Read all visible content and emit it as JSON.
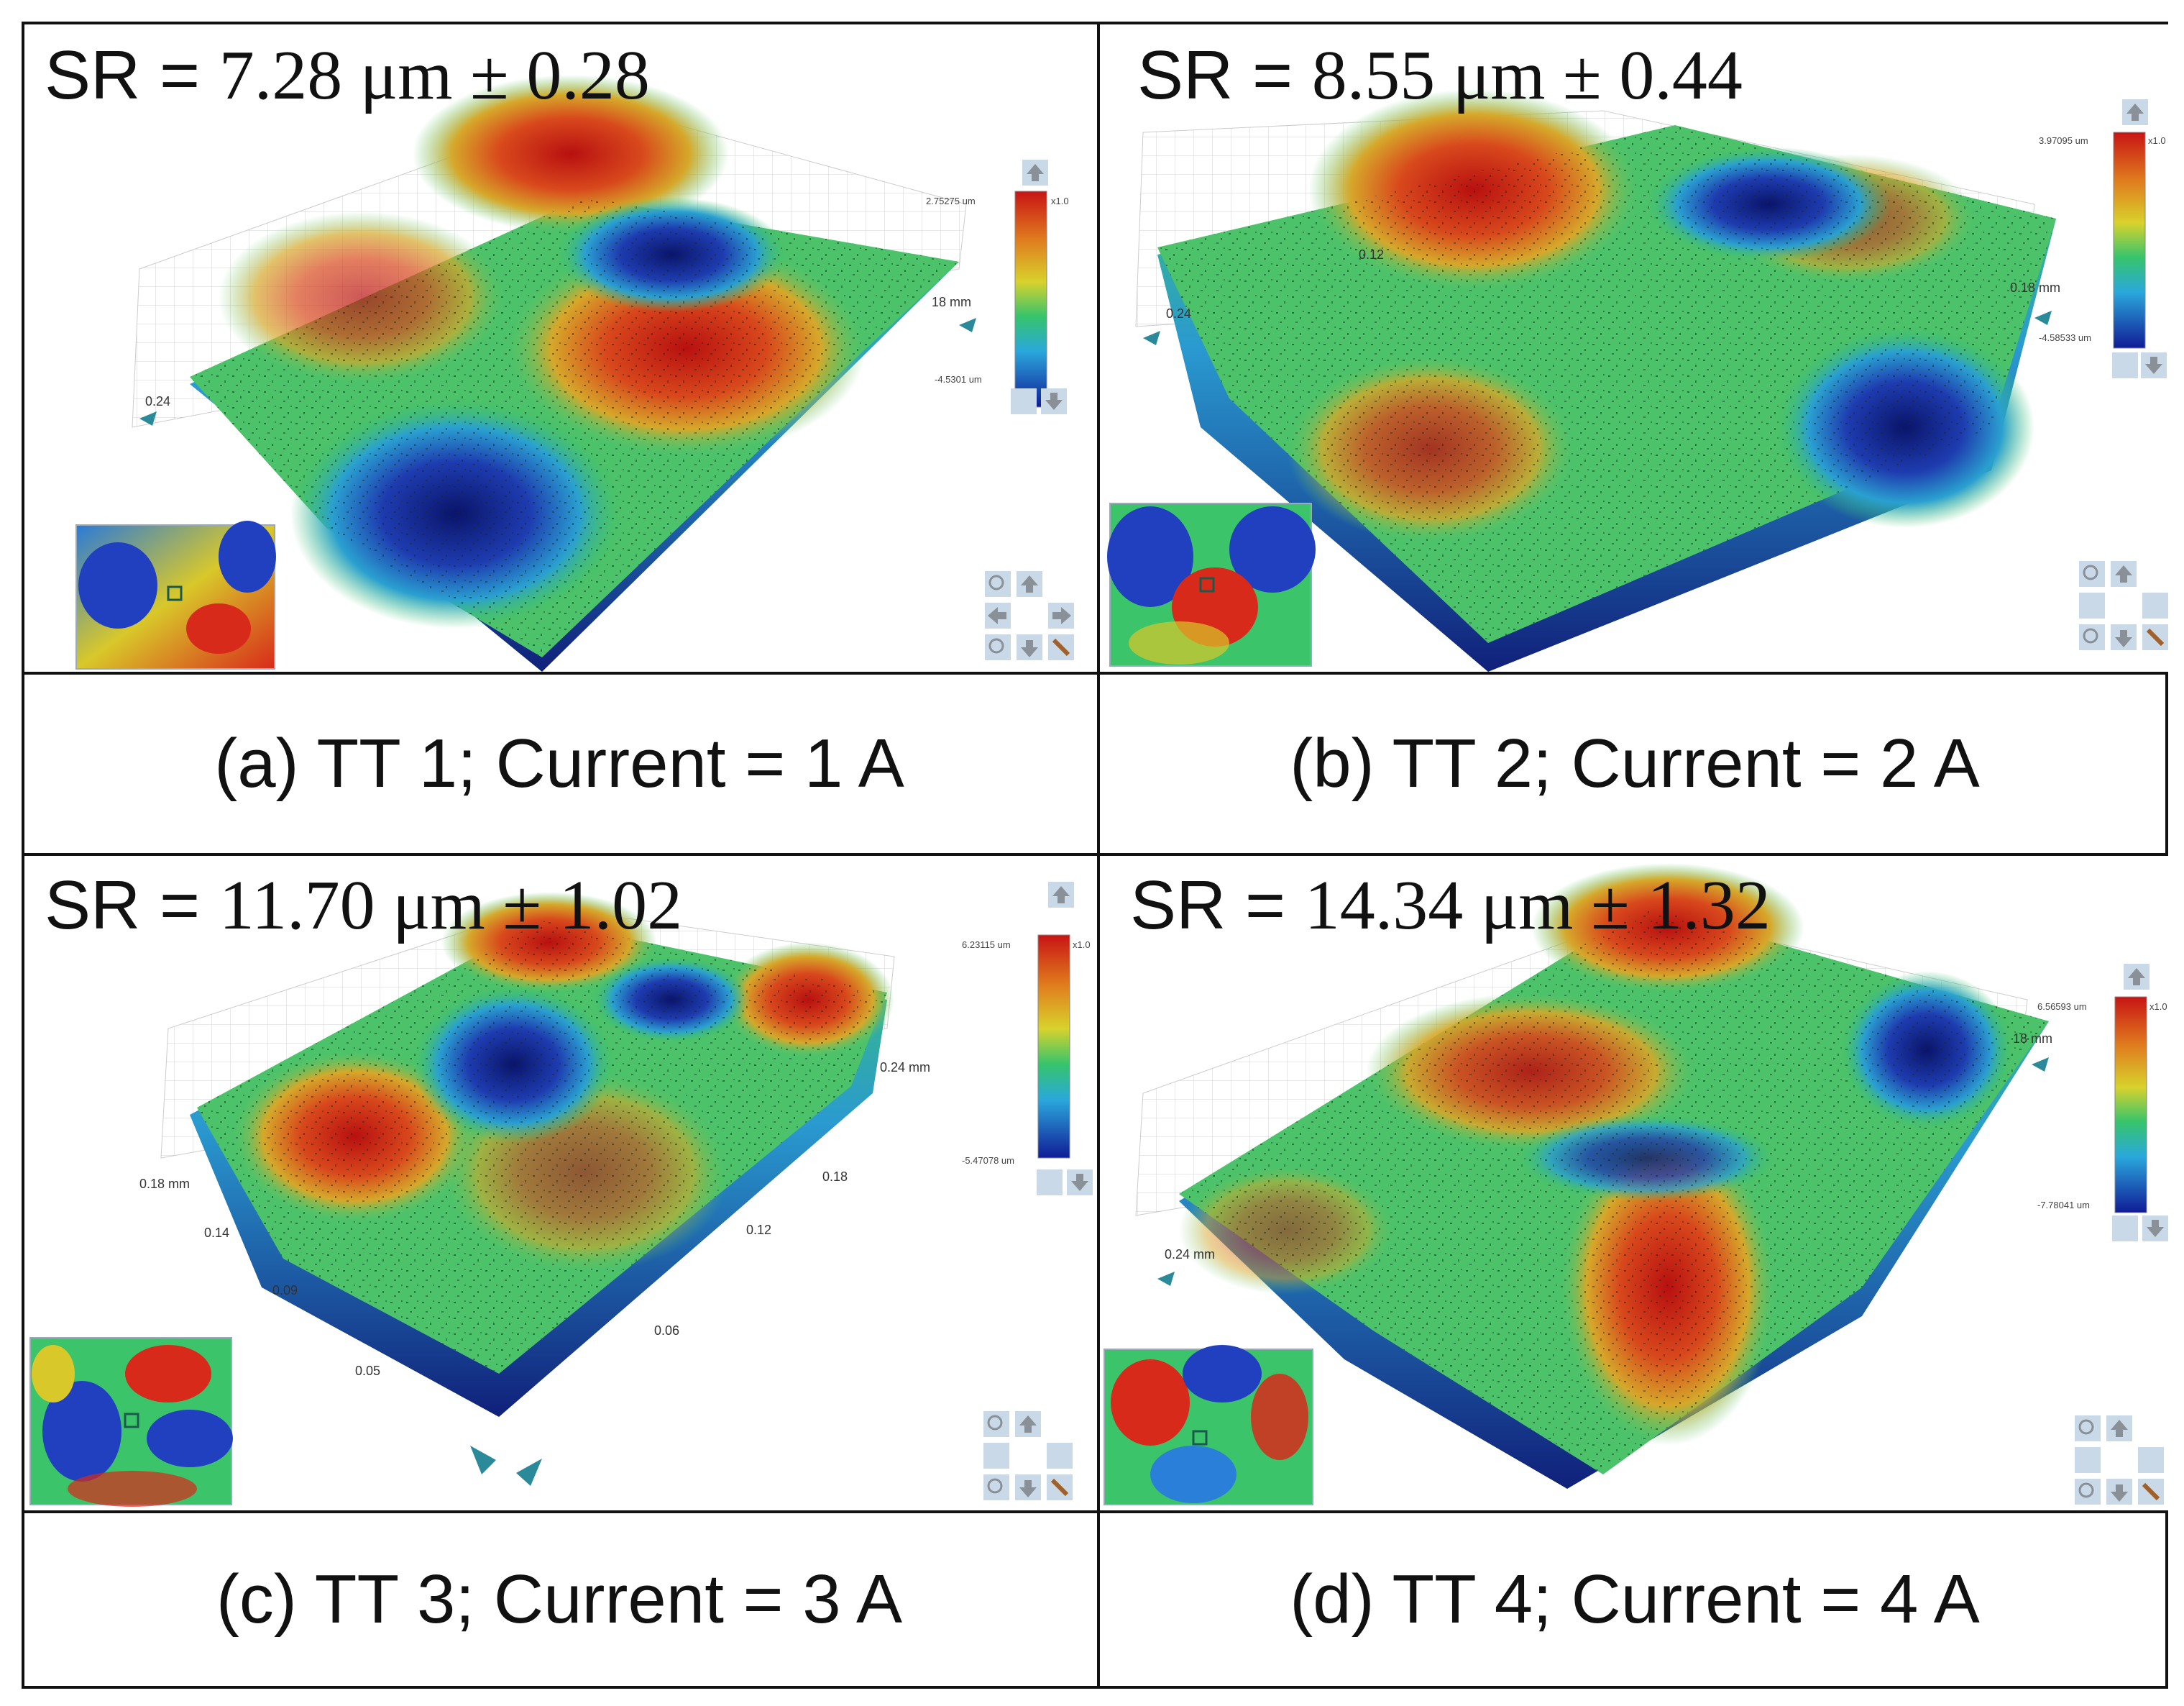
{
  "panels": [
    {
      "sr_label": "SR = ",
      "sr_value": "7.28 μm ± 0.28",
      "caption": "(a) TT 1; Current = 1 A",
      "colorbar_max": "2.75275 um",
      "colorbar_min": "-4.5301 um",
      "colorbar_scale": "x1.0",
      "axis_labels": [
        "0.24",
        "18 mm"
      ]
    },
    {
      "sr_label": "SR = ",
      "sr_value": "8.55 μm ± 0.44",
      "caption": "(b) TT 2; Current = 2 A",
      "colorbar_max": "3.97095 um",
      "colorbar_min": "-4.58533 um",
      "colorbar_scale": "x1.0",
      "axis_labels": [
        "0.24",
        "0.18 mm",
        "0.12"
      ]
    },
    {
      "sr_label": "SR = ",
      "sr_value": "11.70 μm ± 1.02",
      "caption": "(c) TT 3; Current = 3 A",
      "colorbar_max": "6.23115 um",
      "colorbar_min": "-5.47078 um",
      "colorbar_scale": "x1.0",
      "axis_labels": [
        "0.18 mm",
        "0.14",
        "0.09",
        "0.05",
        "0.24 mm",
        "0.18",
        "0.12",
        "0.06"
      ]
    },
    {
      "sr_label": "SR = ",
      "sr_value": "14.34 μm ± 1.32",
      "caption": "(d) TT 4; Current = 4 A",
      "colorbar_max": "6.56593 um",
      "colorbar_min": "-7.78041 um",
      "colorbar_scale": "x1.0",
      "axis_labels": [
        "0.24 mm",
        "18 mm"
      ]
    }
  ],
  "colors": {
    "red": "#c81e1e",
    "orange": "#d86a1e",
    "yellow": "#d6c82a",
    "green": "#3cc46a",
    "cyan": "#2ab4d6",
    "blue": "#1e3ca8",
    "dark_blue": "#0c1e6e",
    "nav_fill": "#c9d9e8",
    "nav_arrow": "#8a9098"
  },
  "icons": [
    "zoom-in-icon",
    "zoom-out-icon",
    "arrow-up-icon",
    "arrow-down-icon",
    "arrow-left-icon",
    "arrow-right-icon",
    "reset-view-icon",
    "scroll-up-icon",
    "scroll-down-icon",
    "lightbulb-icon",
    "camera-handle-icon"
  ]
}
